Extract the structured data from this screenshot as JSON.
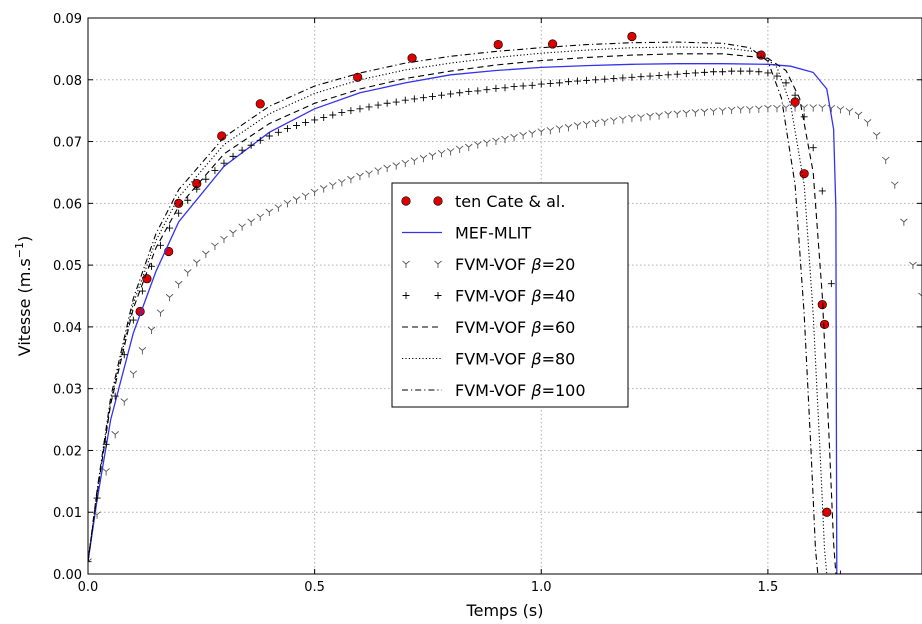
{
  "chart_data": {
    "type": "line",
    "xlabel": "Temps (s)",
    "ylabel": "Vitesse (m.s",
    "ylabel_sup": "−1",
    "ylabel_close": ")",
    "xlim": [
      0.0,
      1.84
    ],
    "ylim": [
      0.0,
      0.09
    ],
    "grid": true,
    "legend_position": "center",
    "x_ticks": [
      {
        "v": 0.0,
        "label": "0.0"
      },
      {
        "v": 0.5,
        "label": "0.5"
      },
      {
        "v": 1.0,
        "label": "1.0"
      },
      {
        "v": 1.5,
        "label": "1.5"
      }
    ],
    "y_ticks": [
      {
        "v": 0.0,
        "label": "0.00"
      },
      {
        "v": 0.01,
        "label": "0.01"
      },
      {
        "v": 0.02,
        "label": "0.02"
      },
      {
        "v": 0.03,
        "label": "0.03"
      },
      {
        "v": 0.04,
        "label": "0.04"
      },
      {
        "v": 0.05,
        "label": "0.05"
      },
      {
        "v": 0.06,
        "label": "0.06"
      },
      {
        "v": 0.07,
        "label": "0.07"
      },
      {
        "v": 0.08,
        "label": "0.08"
      },
      {
        "v": 0.09,
        "label": "0.09"
      }
    ],
    "series": [
      {
        "name": "ten Cate & al.",
        "name_suffix": "",
        "style": "points",
        "color": "#dd0000",
        "x": [
          0.115,
          0.13,
          0.178,
          0.2,
          0.24,
          0.295,
          0.38,
          0.595,
          0.715,
          0.905,
          1.025,
          1.2,
          1.485,
          1.56,
          1.58,
          1.62,
          1.625,
          1.63
        ],
        "y": [
          0.0425,
          0.0478,
          0.0522,
          0.06,
          0.0632,
          0.0709,
          0.0761,
          0.0804,
          0.0835,
          0.0857,
          0.0858,
          0.087,
          0.084,
          0.0764,
          0.0648,
          0.0436,
          0.0404,
          0.01
        ]
      },
      {
        "name": "MEF-MLIT",
        "name_suffix": "",
        "style": "solid",
        "color": "#3333ee",
        "x": [
          0.0,
          0.02,
          0.05,
          0.1,
          0.15,
          0.2,
          0.3,
          0.4,
          0.5,
          0.6,
          0.7,
          0.8,
          0.9,
          1.0,
          1.1,
          1.2,
          1.3,
          1.4,
          1.5,
          1.55,
          1.6,
          1.63,
          1.645,
          1.65,
          1.651,
          1.652,
          1.84
        ],
        "y": [
          0.002,
          0.012,
          0.025,
          0.039,
          0.049,
          0.057,
          0.066,
          0.0715,
          0.0753,
          0.0779,
          0.0795,
          0.0808,
          0.0815,
          0.082,
          0.0823,
          0.0825,
          0.0826,
          0.0826,
          0.0825,
          0.0822,
          0.0812,
          0.0785,
          0.072,
          0.059,
          0.03,
          0.0,
          0.0
        ]
      },
      {
        "name": "FVM-VOF ",
        "name_suffix": "=20",
        "style": "markers-y",
        "color": "#555555",
        "x": [
          0.0,
          0.02,
          0.04,
          0.06,
          0.08,
          0.1,
          0.12,
          0.14,
          0.16,
          0.18,
          0.2,
          0.22,
          0.24,
          0.26,
          0.28,
          0.3,
          0.32,
          0.34,
          0.36,
          0.38,
          0.4,
          0.42,
          0.44,
          0.46,
          0.48,
          0.5,
          0.52,
          0.54,
          0.56,
          0.58,
          0.6,
          0.62,
          0.64,
          0.66,
          0.68,
          0.7,
          0.72,
          0.74,
          0.76,
          0.78,
          0.8,
          0.82,
          0.84,
          0.86,
          0.88,
          0.9,
          0.92,
          0.94,
          0.96,
          0.98,
          1.0,
          1.02,
          1.04,
          1.06,
          1.08,
          1.1,
          1.12,
          1.14,
          1.16,
          1.18,
          1.2,
          1.22,
          1.24,
          1.26,
          1.28,
          1.3,
          1.32,
          1.34,
          1.36,
          1.38,
          1.4,
          1.42,
          1.44,
          1.46,
          1.48,
          1.5,
          1.52,
          1.54,
          1.56,
          1.58,
          1.6,
          1.62,
          1.64,
          1.66,
          1.68,
          1.7,
          1.72,
          1.74,
          1.76,
          1.78,
          1.8,
          1.82,
          1.84
        ],
        "y": [
          0.002,
          0.0096,
          0.0166,
          0.0226,
          0.0279,
          0.0324,
          0.0362,
          0.0395,
          0.0423,
          0.0448,
          0.0469,
          0.0488,
          0.0504,
          0.0518,
          0.0531,
          0.0542,
          0.0552,
          0.0562,
          0.057,
          0.0578,
          0.0586,
          0.0593,
          0.06,
          0.0606,
          0.0612,
          0.0618,
          0.0624,
          0.0629,
          0.0634,
          0.0639,
          0.0644,
          0.0648,
          0.0653,
          0.0657,
          0.0661,
          0.0665,
          0.0669,
          0.0673,
          0.0677,
          0.0681,
          0.0684,
          0.0688,
          0.0691,
          0.0695,
          0.0698,
          0.0701,
          0.0704,
          0.0707,
          0.071,
          0.0713,
          0.0716,
          0.0718,
          0.0721,
          0.0723,
          0.0726,
          0.0728,
          0.073,
          0.0732,
          0.0734,
          0.0736,
          0.0738,
          0.0739,
          0.0741,
          0.0742,
          0.0744,
          0.0745,
          0.0746,
          0.0747,
          0.0748,
          0.0749,
          0.075,
          0.0751,
          0.0752,
          0.0752,
          0.0753,
          0.0754,
          0.0754,
          0.0755,
          0.0755,
          0.0755,
          0.0755,
          0.0755,
          0.0754,
          0.0752,
          0.0749,
          0.0743,
          0.0731,
          0.071,
          0.067,
          0.063,
          0.057,
          0.05,
          0.045
        ]
      },
      {
        "name": "FVM-VOF ",
        "name_suffix": "=40",
        "style": "markers-plus",
        "color": "#000000",
        "x": [
          0.0,
          0.02,
          0.04,
          0.06,
          0.08,
          0.1,
          0.12,
          0.14,
          0.16,
          0.18,
          0.2,
          0.22,
          0.24,
          0.26,
          0.28,
          0.3,
          0.32,
          0.34,
          0.36,
          0.38,
          0.4,
          0.42,
          0.44,
          0.46,
          0.48,
          0.5,
          0.52,
          0.54,
          0.56,
          0.58,
          0.6,
          0.62,
          0.64,
          0.66,
          0.68,
          0.7,
          0.72,
          0.74,
          0.76,
          0.78,
          0.8,
          0.82,
          0.84,
          0.86,
          0.88,
          0.9,
          0.92,
          0.94,
          0.96,
          0.98,
          1.0,
          1.02,
          1.04,
          1.06,
          1.08,
          1.1,
          1.12,
          1.14,
          1.16,
          1.18,
          1.2,
          1.22,
          1.24,
          1.26,
          1.28,
          1.3,
          1.32,
          1.34,
          1.36,
          1.38,
          1.4,
          1.42,
          1.44,
          1.46,
          1.48,
          1.5,
          1.52,
          1.54,
          1.56,
          1.58,
          1.6,
          1.62,
          1.64,
          1.66
        ],
        "y": [
          0.002,
          0.0123,
          0.021,
          0.0288,
          0.0355,
          0.0411,
          0.0458,
          0.0498,
          0.0532,
          0.056,
          0.0584,
          0.0605,
          0.0623,
          0.0639,
          0.0653,
          0.0665,
          0.0676,
          0.0686,
          0.0694,
          0.0702,
          0.0709,
          0.0715,
          0.0721,
          0.0726,
          0.0731,
          0.0735,
          0.0739,
          0.0743,
          0.0747,
          0.075,
          0.0753,
          0.0756,
          0.0759,
          0.0762,
          0.0764,
          0.0767,
          0.0769,
          0.0771,
          0.0773,
          0.0775,
          0.0777,
          0.0779,
          0.0781,
          0.0782,
          0.0784,
          0.0786,
          0.0787,
          0.0789,
          0.079,
          0.0791,
          0.0793,
          0.0794,
          0.0795,
          0.0797,
          0.0798,
          0.0799,
          0.08,
          0.0801,
          0.0802,
          0.0803,
          0.0804,
          0.0805,
          0.0806,
          0.0807,
          0.0808,
          0.0809,
          0.081,
          0.0811,
          0.0812,
          0.0813,
          0.0813,
          0.0814,
          0.0814,
          0.0814,
          0.0813,
          0.0811,
          0.0806,
          0.0795,
          0.0775,
          0.074,
          0.069,
          0.062,
          0.047,
          0.0
        ]
      },
      {
        "name": "FVM-VOF ",
        "name_suffix": "=60",
        "style": "dashed",
        "color": "#000000",
        "x": [
          0.0,
          0.02,
          0.05,
          0.1,
          0.15,
          0.2,
          0.3,
          0.4,
          0.5,
          0.6,
          0.7,
          0.8,
          0.9,
          1.0,
          1.1,
          1.2,
          1.3,
          1.4,
          1.5,
          1.54,
          1.57,
          1.6,
          1.62,
          1.635,
          1.645,
          1.65,
          1.84
        ],
        "y": [
          0.002,
          0.013,
          0.0275,
          0.043,
          0.0528,
          0.0595,
          0.068,
          0.0729,
          0.0762,
          0.0785,
          0.0802,
          0.0814,
          0.0824,
          0.0831,
          0.0836,
          0.084,
          0.0842,
          0.0842,
          0.0835,
          0.0815,
          0.077,
          0.065,
          0.045,
          0.022,
          0.005,
          0.0,
          0.0
        ]
      },
      {
        "name": "FVM-VOF ",
        "name_suffix": "=80",
        "style": "dotted",
        "color": "#000000",
        "x": [
          0.0,
          0.02,
          0.05,
          0.1,
          0.15,
          0.2,
          0.3,
          0.4,
          0.5,
          0.6,
          0.7,
          0.8,
          0.9,
          1.0,
          1.1,
          1.2,
          1.3,
          1.4,
          1.48,
          1.52,
          1.55,
          1.58,
          1.6,
          1.615,
          1.625,
          1.63,
          1.84
        ],
        "y": [
          0.002,
          0.0133,
          0.028,
          0.0438,
          0.054,
          0.061,
          0.0695,
          0.0745,
          0.0778,
          0.08,
          0.0816,
          0.0827,
          0.0836,
          0.0843,
          0.0848,
          0.0852,
          0.0853,
          0.0852,
          0.0845,
          0.082,
          0.076,
          0.063,
          0.042,
          0.02,
          0.004,
          0.0,
          0.0
        ]
      },
      {
        "name": "FVM-VOF ",
        "name_suffix": "=100",
        "style": "dashdot",
        "color": "#000000",
        "x": [
          0.0,
          0.02,
          0.05,
          0.1,
          0.15,
          0.2,
          0.3,
          0.4,
          0.5,
          0.6,
          0.7,
          0.8,
          0.9,
          1.0,
          1.1,
          1.2,
          1.3,
          1.4,
          1.46,
          1.5,
          1.53,
          1.56,
          1.58,
          1.595,
          1.605,
          1.61,
          1.84
        ],
        "y": [
          0.002,
          0.0136,
          0.0286,
          0.0446,
          0.0551,
          0.0622,
          0.0707,
          0.0757,
          0.079,
          0.0811,
          0.0827,
          0.0838,
          0.0846,
          0.0852,
          0.0857,
          0.086,
          0.0861,
          0.0859,
          0.0852,
          0.083,
          0.077,
          0.063,
          0.042,
          0.02,
          0.004,
          0.0,
          0.0
        ]
      }
    ]
  }
}
